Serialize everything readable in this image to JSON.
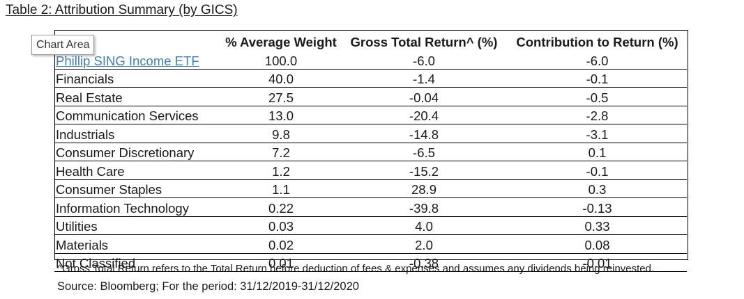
{
  "title": "Table 2: Attribution Summary (by GICS)",
  "chart_area_label": "Chart Area",
  "table": {
    "headers": [
      "",
      "% Average Weight",
      "Gross Total Return^ (%)",
      "Contribution to Return (%)"
    ],
    "rows": [
      {
        "name": "Phillip SING Income ETF",
        "weight": "100.0",
        "return": "-6.0",
        "contribution": "-6.0"
      },
      {
        "name": "Financials",
        "weight": "40.0",
        "return": "-1.4",
        "contribution": "-0.1"
      },
      {
        "name": "Real Estate",
        "weight": "27.5",
        "return": "-0.04",
        "contribution": "-0.5"
      },
      {
        "name": "Communication Services",
        "weight": "13.0",
        "return": "-20.4",
        "contribution": "-2.8"
      },
      {
        "name": "Industrials",
        "weight": "9.8",
        "return": "-14.8",
        "contribution": "-3.1"
      },
      {
        "name": "Consumer Discretionary",
        "weight": "7.2",
        "return": "-6.5",
        "contribution": "0.1"
      },
      {
        "name": "Health Care",
        "weight": "1.2",
        "return": "-15.2",
        "contribution": "-0.1"
      },
      {
        "name": "Consumer Staples",
        "weight": "1.1",
        "return": "28.9",
        "contribution": "0.3"
      },
      {
        "name": "Information Technology",
        "weight": "0.22",
        "return": "-39.8",
        "contribution": "-0.13"
      },
      {
        "name": "Utilities",
        "weight": "0.03",
        "return": "4.0",
        "contribution": "0.33"
      },
      {
        "name": "Materials",
        "weight": "0.02",
        "return": "2.0",
        "contribution": "0.08"
      },
      {
        "name": "Not Classified",
        "weight": "0.01",
        "return": "-0.38",
        "contribution": "-0.01"
      }
    ]
  },
  "footnote": "^Gross Total Return refers to the Total Return before deduction of fees & expenses and assumes any dividends being reinvested.",
  "source": "Source: Bloomberg; For the period: 31/12/2019-31/12/2020",
  "colors": {
    "link": "#3f7fbf",
    "border": "#000000"
  }
}
